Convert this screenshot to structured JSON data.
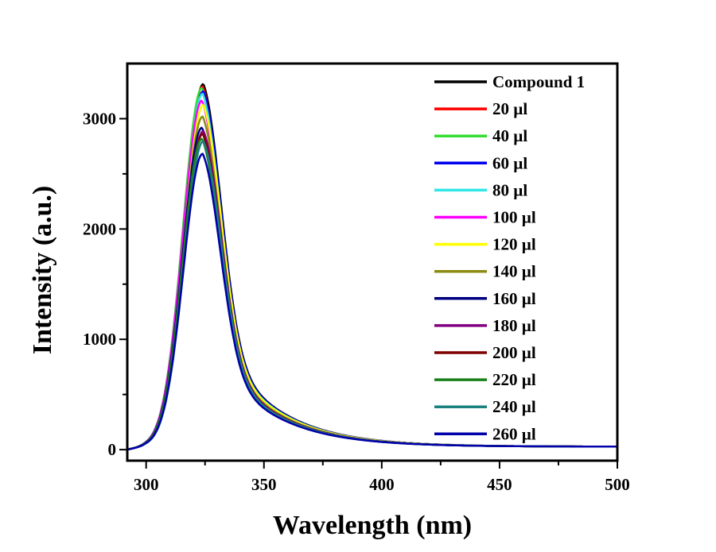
{
  "chart_data": {
    "type": "line",
    "title": "",
    "xlabel": "Wavelength (nm)",
    "ylabel": "Intensity (a.u.)",
    "xlim": [
      292,
      500
    ],
    "ylim": [
      -100,
      3500
    ],
    "x_ticks": [
      300,
      350,
      400,
      450,
      500
    ],
    "x_tick_labels": [
      "300",
      "350",
      "400",
      "450",
      "500"
    ],
    "y_ticks": [
      0,
      1000,
      2000,
      3000
    ],
    "y_tick_labels": [
      "0",
      "1000",
      "2000",
      "3000"
    ],
    "grid": false,
    "legend_position": "top-right",
    "peak_wavelength": 324,
    "series": [
      {
        "name": "Compound 1",
        "color": "#000000",
        "peak": 3288
      },
      {
        "name": "20 µl",
        "color": "#ff0000",
        "peak": 3266
      },
      {
        "name": "40 µl",
        "color": "#33dd33",
        "peak": 3252
      },
      {
        "name": "60 µl",
        "color": "#0000ee",
        "peak": 3223
      },
      {
        "name": "80 µl",
        "color": "#33e6e6",
        "peak": 3200
      },
      {
        "name": "100 µl",
        "color": "#ff00ff",
        "peak": 3137
      },
      {
        "name": "120 µl",
        "color": "#ffff00",
        "peak": 3100
      },
      {
        "name": "140 µl",
        "color": "#8c8c14",
        "peak": 2993
      },
      {
        "name": "160 µl",
        "color": "#000080",
        "peak": 2892
      },
      {
        "name": "180 µl",
        "color": "#800080",
        "peak": 2863
      },
      {
        "name": "200 µl",
        "color": "#800000",
        "peak": 2835
      },
      {
        "name": "220 µl",
        "color": "#1a801a",
        "peak": 2791
      },
      {
        "name": "240 µl",
        "color": "#1a8080",
        "peak": 2770
      },
      {
        "name": "260 µl",
        "color": "#0000aa",
        "peak": 2655
      }
    ]
  }
}
